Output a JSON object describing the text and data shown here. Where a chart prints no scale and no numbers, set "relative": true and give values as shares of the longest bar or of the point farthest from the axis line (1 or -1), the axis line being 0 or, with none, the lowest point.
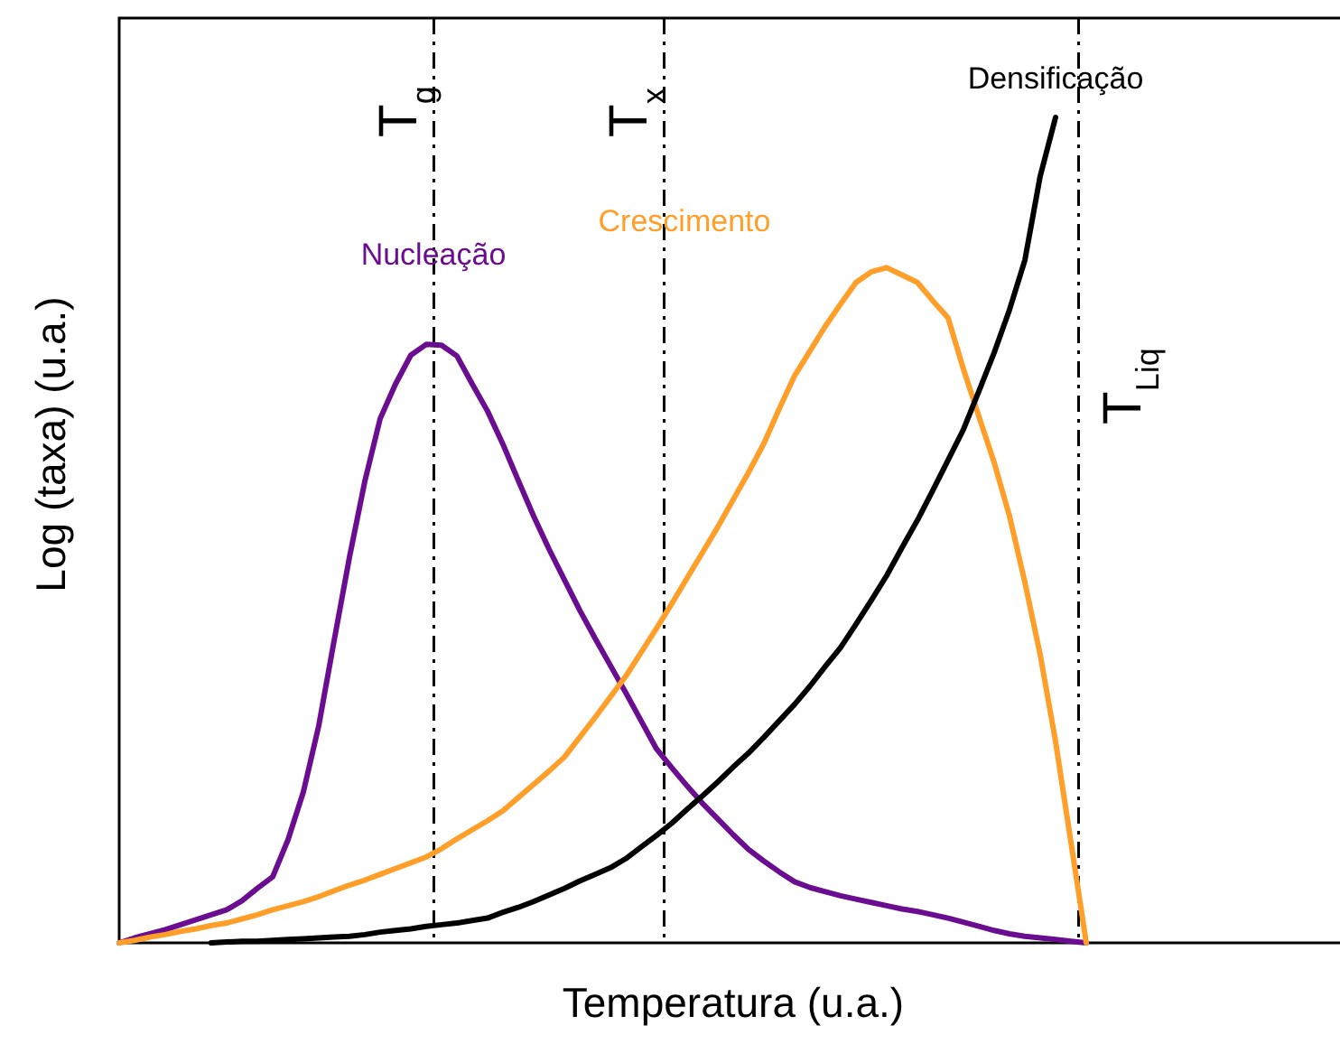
{
  "chart_data": {
    "type": "line",
    "relative": true,
    "xlabel": "Temperatura (u.a.)",
    "ylabel": "Log (taxa) (u.a.)",
    "legend": false,
    "grid": false,
    "line_style": "solid",
    "marker": "none",
    "categories": [
      null,
      null,
      null,
      null,
      null,
      null,
      null,
      null,
      null,
      null,
      null,
      null,
      null,
      null,
      null,
      null,
      null,
      null,
      null,
      null,
      null,
      null,
      null,
      null,
      null,
      null,
      null,
      null,
      null,
      null,
      null,
      null,
      null,
      null,
      null,
      null,
      null,
      null,
      null,
      null,
      null,
      null,
      null,
      null,
      null,
      null,
      null,
      null,
      null,
      null,
      null,
      null,
      null,
      null,
      null,
      null,
      null,
      null,
      null,
      null,
      null,
      null,
      null,
      null,
      null,
      null,
      null,
      null,
      null,
      null,
      null,
      null,
      null,
      null,
      null,
      null,
      null,
      null,
      null,
      null
    ],
    "series": [
      {
        "name": "Nucleação",
        "color": "#6a0d91",
        "values": [
          0,
          0.006,
          0.011,
          0.016,
          0.022,
          0.028,
          0.034,
          0.04,
          0.051,
          0.066,
          0.08,
          0.125,
          0.183,
          0.263,
          0.366,
          0.467,
          0.559,
          0.635,
          0.677,
          0.712,
          0.725,
          0.724,
          0.711,
          0.677,
          0.644,
          0.604,
          0.56,
          0.517,
          0.477,
          0.44,
          0.403,
          0.369,
          0.336,
          0.303,
          0.269,
          0.235,
          0.212,
          0.19,
          0.169,
          0.15,
          0.131,
          0.113,
          0.099,
          0.086,
          0.074,
          0.067,
          0.062,
          0.057,
          0.053,
          0.049,
          0.045,
          0.041,
          0.038,
          0.034,
          0.03,
          0.025,
          0.02,
          0.015,
          0.011,
          0.008,
          0.006,
          0.004,
          0.002,
          0,
          null,
          null,
          null,
          null,
          null,
          null,
          null,
          null,
          null,
          null,
          null,
          null,
          null,
          null,
          null,
          null
        ]
      },
      {
        "name": "Crescimento",
        "color": "#ff9f2a",
        "values": [
          0,
          0.003,
          0.007,
          0.01,
          0.014,
          0.017,
          0.021,
          0.024,
          0.029,
          0.034,
          0.04,
          0.045,
          0.05,
          0.056,
          0.063,
          0.07,
          0.076,
          0.083,
          0.09,
          0.097,
          0.104,
          0.114,
          0.126,
          0.137,
          0.148,
          0.16,
          0.176,
          0.192,
          0.208,
          0.225,
          0.249,
          0.273,
          0.298,
          0.323,
          0.352,
          0.381,
          0.411,
          0.442,
          0.473,
          0.504,
          0.537,
          0.57,
          0.605,
          0.647,
          0.687,
          0.717,
          0.747,
          0.774,
          0.8,
          0.813,
          0.818,
          0.809,
          0.8,
          0.778,
          0.757,
          0.695,
          0.638,
          0.582,
          0.517,
          0.437,
          0.349,
          0.244,
          0.122,
          0,
          null,
          null,
          null,
          null,
          null,
          null,
          null,
          null,
          null,
          null,
          null,
          null,
          null,
          null,
          null,
          null
        ]
      },
      {
        "name": "Densificação",
        "color": "#000000",
        "values": [
          null,
          null,
          null,
          null,
          null,
          null,
          0,
          0.001,
          0.002,
          0.002,
          0.003,
          0.004,
          0.005,
          0.006,
          0.007,
          0.008,
          0.01,
          0.013,
          0.015,
          0.017,
          0.02,
          0.022,
          0.024,
          0.027,
          0.03,
          0.037,
          0.043,
          0.05,
          0.058,
          0.066,
          0.075,
          0.083,
          0.091,
          0.102,
          0.116,
          0.13,
          0.145,
          0.162,
          0.178,
          0.195,
          0.213,
          0.23,
          0.249,
          0.269,
          0.289,
          0.311,
          0.335,
          0.358,
          0.386,
          0.415,
          0.445,
          0.479,
          0.512,
          0.548,
          0.585,
          0.622,
          0.668,
          0.715,
          0.767,
          0.827,
          0.929,
          1,
          null,
          null,
          null,
          null,
          null,
          null,
          null,
          null,
          null,
          null,
          null,
          null,
          null,
          null,
          null,
          null,
          null,
          null
        ]
      }
    ],
    "annotations": [
      "T$_{g}$",
      "T$_{x}$",
      "T$_{Liq}$"
    ]
  }
}
